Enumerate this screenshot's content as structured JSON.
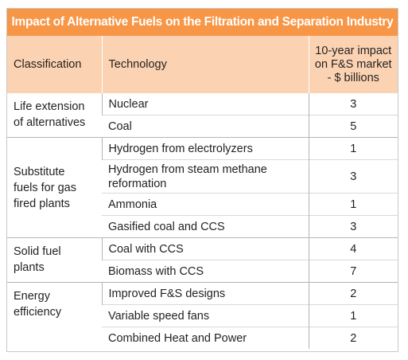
{
  "title": "Impact of Alternative Fuels on the Filtration and Separation Industry",
  "headers": {
    "classification": "Classification",
    "technology": "Technology",
    "impact": [
      "10-year impact",
      "on F&S market",
      "- $ billions"
    ]
  },
  "groups": [
    {
      "classification": [
        "Life extension",
        "of alternatives"
      ],
      "rows": [
        {
          "technology": "Nuclear",
          "value": "3"
        },
        {
          "technology": "Coal",
          "value": "5"
        }
      ]
    },
    {
      "classification": [
        "Substitute",
        "fuels for gas",
        "fired plants"
      ],
      "rows": [
        {
          "technology": "Hydrogen from electrolyzers",
          "value": "1"
        },
        {
          "technology": "Hydrogen from steam methane reformation",
          "value": "3"
        },
        {
          "technology": "Ammonia",
          "value": "1"
        },
        {
          "technology": "Gasified coal and CCS",
          "value": "3"
        }
      ]
    },
    {
      "classification": [
        "Solid fuel",
        "plants"
      ],
      "rows": [
        {
          "technology": "Coal with CCS",
          "value": "4"
        },
        {
          "technology": "Biomass with CCS",
          "value": "7"
        }
      ]
    },
    {
      "classification": [
        "Energy",
        "efficiency"
      ],
      "rows": [
        {
          "technology": "Improved F&S designs",
          "value": "2"
        },
        {
          "technology": "Variable speed fans",
          "value": "1"
        },
        {
          "technology": "Combined Heat and Power",
          "value": "2"
        }
      ]
    }
  ]
}
